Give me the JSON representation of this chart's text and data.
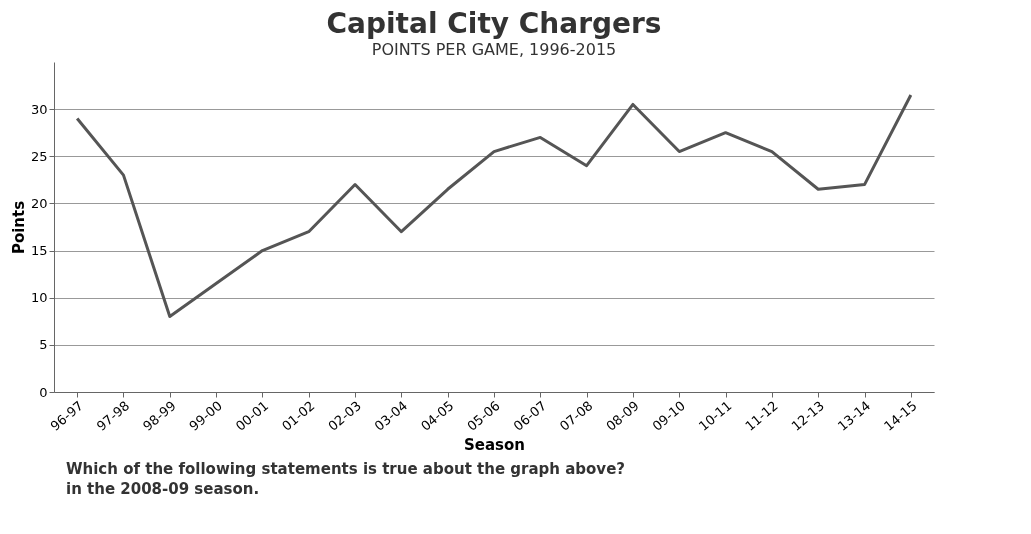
{
  "chart_data": {
    "type": "line",
    "title": "Capital City Chargers",
    "subtitle": "POINTS PER GAME, 1996-2015",
    "xlabel": "Season",
    "ylabel": "Points",
    "categories": [
      "96-97",
      "97-98",
      "98-99",
      "99-00",
      "00-01",
      "01-02",
      "02-03",
      "03-04",
      "04-05",
      "05-06",
      "06-07",
      "07-08",
      "08-09",
      "09-10",
      "10-11",
      "11-12",
      "12-13",
      "13-14",
      "14-15"
    ],
    "values": [
      29,
      23,
      8,
      11.5,
      15,
      17,
      22,
      17,
      21.5,
      25.5,
      27,
      24,
      30.5,
      25.5,
      27.5,
      25.5,
      21.5,
      22,
      31.5
    ],
    "color": "#555555",
    "ylim": [
      0,
      35
    ],
    "yticks": [
      0,
      5,
      10,
      15,
      20,
      25,
      30
    ],
    "grid": "y",
    "legend": false,
    "marker": "none",
    "line_style": "solid",
    "annotations": [
      "Which of the following statements is true about the graph above?",
      "in the 2008-09 season."
    ]
  }
}
